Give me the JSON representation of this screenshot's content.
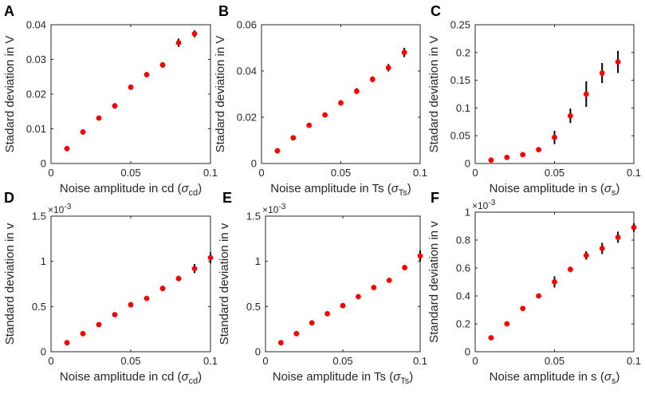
{
  "chart_data": [
    {
      "panel": "A",
      "type": "scatter",
      "xlabel": "Noise amplitude in cd (",
      "xsym": "σ",
      "xsub": "cd",
      "xclose": ")",
      "ylabel": "Stadard deviation in V",
      "xlim": [
        0,
        0.1
      ],
      "ylim": [
        0,
        0.04
      ],
      "xticks": [
        0,
        0.05,
        0.1
      ],
      "xticklabels": [
        "0",
        "0.05",
        "0.1"
      ],
      "yticks": [
        0,
        0.01,
        0.02,
        0.03,
        0.04
      ],
      "yticklabels": [
        "0",
        "0.01",
        "0.02",
        "0.03",
        "0.04"
      ],
      "exponent": "",
      "x": [
        0.01,
        0.02,
        0.03,
        0.04,
        0.05,
        0.06,
        0.07,
        0.08,
        0.09
      ],
      "y": [
        0.0043,
        0.0091,
        0.0131,
        0.0166,
        0.022,
        0.0256,
        0.0284,
        0.0348,
        0.0374
      ],
      "err": [
        0.0002,
        0.0003,
        0.0004,
        0.0008,
        0.0004,
        0.0008,
        0.0008,
        0.0012,
        0.001
      ]
    },
    {
      "panel": "B",
      "type": "scatter",
      "xlabel": "Noise amplitude in Ts (",
      "xsym": "σ",
      "xsub": "Ts",
      "xclose": ")",
      "ylabel": "Stadard deviation in V",
      "xlim": [
        0,
        0.1
      ],
      "ylim": [
        0,
        0.06
      ],
      "xticks": [
        0,
        0.05,
        0.1
      ],
      "xticklabels": [
        "0",
        "0.05",
        "0.1"
      ],
      "yticks": [
        0,
        0.02,
        0.04,
        0.06
      ],
      "yticklabels": [
        "0",
        "0.02",
        "0.04",
        "0.06"
      ],
      "exponent": "",
      "x": [
        0.01,
        0.02,
        0.03,
        0.04,
        0.05,
        0.06,
        0.07,
        0.08,
        0.09
      ],
      "y": [
        0.0055,
        0.0111,
        0.0165,
        0.021,
        0.0262,
        0.0313,
        0.0364,
        0.0414,
        0.048
      ],
      "err": [
        0.0003,
        0.0005,
        0.0005,
        0.0005,
        0.0012,
        0.0013,
        0.0013,
        0.0016,
        0.002
      ]
    },
    {
      "panel": "C",
      "type": "scatter",
      "xlabel": "Noise amplitude in s (",
      "xsym": "σ",
      "xsub": "s",
      "xclose": ")",
      "ylabel": "Stadard deviation in V",
      "xlim": [
        0,
        0.1
      ],
      "ylim": [
        0,
        0.25
      ],
      "xticks": [
        0,
        0.05,
        0.1
      ],
      "xticklabels": [
        "0",
        "0.05",
        "0.1"
      ],
      "yticks": [
        0,
        0.05,
        0.1,
        0.15,
        0.2,
        0.25
      ],
      "yticklabels": [
        "0",
        "0.05",
        "0.1",
        "0.15",
        "0.2",
        "0.25"
      ],
      "exponent": "",
      "x": [
        0.01,
        0.02,
        0.03,
        0.04,
        0.05,
        0.06,
        0.07,
        0.08,
        0.09
      ],
      "y": [
        0.006,
        0.011,
        0.016,
        0.025,
        0.047,
        0.086,
        0.125,
        0.163,
        0.183
      ],
      "err": [
        0.002,
        0.002,
        0.003,
        0.004,
        0.012,
        0.013,
        0.023,
        0.018,
        0.02
      ]
    },
    {
      "panel": "D",
      "type": "scatter",
      "xlabel": "Noise amplitude in cd (",
      "xsym": "σ",
      "xsub": "cd",
      "xclose": ")",
      "ylabel": "Standard deviation in v",
      "xlim": [
        0,
        0.1
      ],
      "ylim": [
        0,
        1.5
      ],
      "xticks": [
        0,
        0.05,
        0.1
      ],
      "xticklabels": [
        "0",
        "0.05",
        "0.1"
      ],
      "yticks": [
        0,
        0.5,
        1,
        1.5
      ],
      "yticklabels": [
        "0",
        "0.5",
        "1",
        "1.5"
      ],
      "exponent": "-3",
      "x": [
        0.01,
        0.02,
        0.03,
        0.04,
        0.05,
        0.06,
        0.07,
        0.08,
        0.09,
        0.1
      ],
      "y": [
        0.1,
        0.2,
        0.3,
        0.41,
        0.52,
        0.59,
        0.7,
        0.81,
        0.92,
        1.04
      ],
      "err": [
        0.005,
        0.01,
        0.01,
        0.015,
        0.015,
        0.02,
        0.03,
        0.03,
        0.05,
        0.06
      ]
    },
    {
      "panel": "E",
      "type": "scatter",
      "xlabel": "Noise amplitude in Ts (",
      "xsym": "σ",
      "xsub": "Ts",
      "xclose": ")",
      "ylabel": "Standard deviation in v",
      "xlim": [
        0,
        0.1
      ],
      "ylim": [
        0,
        1.5
      ],
      "xticks": [
        0,
        0.05,
        0.1
      ],
      "xticklabels": [
        "0",
        "0.05",
        "0.1"
      ],
      "yticks": [
        0,
        0.5,
        1,
        1.5
      ],
      "yticklabels": [
        "0",
        "0.5",
        "1",
        "1.5"
      ],
      "exponent": "-3",
      "x": [
        0.01,
        0.02,
        0.03,
        0.04,
        0.05,
        0.06,
        0.07,
        0.08,
        0.09,
        0.1
      ],
      "y": [
        0.1,
        0.2,
        0.32,
        0.42,
        0.51,
        0.61,
        0.71,
        0.79,
        0.93,
        1.06
      ],
      "err": [
        0.005,
        0.01,
        0.01,
        0.015,
        0.015,
        0.02,
        0.025,
        0.02,
        0.03,
        0.06
      ]
    },
    {
      "panel": "F",
      "type": "scatter",
      "xlabel": "Noise amplitude in s (",
      "xsym": "σ",
      "xsub": "s",
      "xclose": ")",
      "ylabel": "Standard deviation in v",
      "xlim": [
        0,
        0.1
      ],
      "ylim": [
        0,
        1
      ],
      "xticks": [
        0,
        0.05,
        0.1
      ],
      "xticklabels": [
        "0",
        "0.05",
        "0.1"
      ],
      "yticks": [
        0,
        0.2,
        0.4,
        0.6,
        0.8,
        1
      ],
      "yticklabels": [
        "0",
        "0.2",
        "0.4",
        "0.6",
        "0.8",
        "1"
      ],
      "exponent": "-3",
      "x": [
        0.01,
        0.02,
        0.03,
        0.04,
        0.05,
        0.06,
        0.07,
        0.08,
        0.09,
        0.1
      ],
      "y": [
        0.1,
        0.2,
        0.31,
        0.4,
        0.5,
        0.59,
        0.69,
        0.74,
        0.82,
        0.89
      ],
      "err": [
        0.005,
        0.01,
        0.01,
        0.015,
        0.04,
        0.02,
        0.03,
        0.04,
        0.04,
        0.03
      ]
    }
  ],
  "colors": {
    "marker": "#ff0000",
    "errorbar": "#000000",
    "axis": "#262626"
  },
  "exponent_base": "×10"
}
